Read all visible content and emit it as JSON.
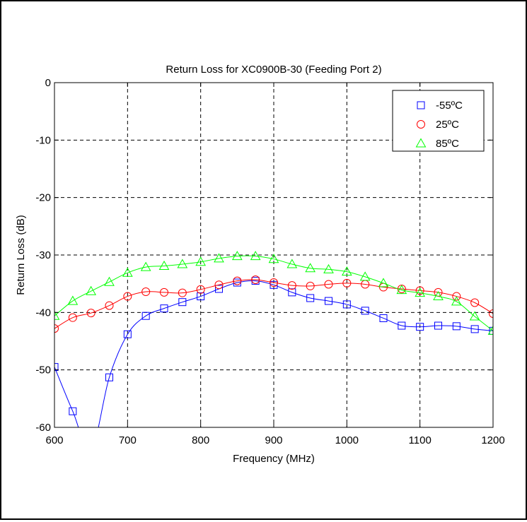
{
  "chart_data": {
    "type": "line",
    "title": "Return Loss for XC0900B-30 (Feeding Port 2)",
    "xlabel": "Frequency (MHz)",
    "ylabel": "Return Loss (dB)",
    "xlim": [
      600,
      1200
    ],
    "ylim": [
      -60,
      0
    ],
    "xticks": [
      600,
      700,
      800,
      900,
      1000,
      1100,
      1200
    ],
    "yticks": [
      0,
      -10,
      -20,
      -30,
      -40,
      -50,
      -60
    ],
    "xtick_labels": [
      "600",
      "700",
      "800",
      "900",
      "1000",
      "1100",
      "1200"
    ],
    "ytick_labels": [
      "0",
      "-10",
      "-20",
      "-30",
      "-40",
      "-50",
      "-60"
    ],
    "grid": true,
    "legend_position": "top-right",
    "series": [
      {
        "name": "-55ºC",
        "color": "#0000ff",
        "marker": "square",
        "x": [
          600,
          625,
          650,
          675,
          700,
          725,
          750,
          775,
          800,
          825,
          850,
          875,
          900,
          925,
          950,
          975,
          1000,
          1025,
          1050,
          1075,
          1100,
          1125,
          1150,
          1175,
          1200
        ],
        "y": [
          -49.5,
          -57.2,
          -64.0,
          -51.3,
          -43.8,
          -40.6,
          -39.3,
          -38.2,
          -37.2,
          -35.9,
          -34.8,
          -34.5,
          -35.2,
          -36.5,
          -37.5,
          -38.0,
          -38.6,
          -39.7,
          -41.0,
          -42.3,
          -42.5,
          -42.3,
          -42.4,
          -42.9,
          -43.2
        ]
      },
      {
        "name": "25ºC",
        "color": "#ff0000",
        "marker": "circle",
        "x": [
          600,
          625,
          650,
          675,
          700,
          725,
          750,
          775,
          800,
          825,
          850,
          875,
          900,
          925,
          950,
          975,
          1000,
          1025,
          1050,
          1075,
          1100,
          1125,
          1150,
          1175,
          1200
        ],
        "y": [
          -42.8,
          -40.9,
          -40.1,
          -38.8,
          -37.2,
          -36.4,
          -36.5,
          -36.6,
          -36.0,
          -35.2,
          -34.5,
          -34.3,
          -34.8,
          -35.3,
          -35.4,
          -35.1,
          -34.9,
          -35.1,
          -35.6,
          -35.9,
          -36.2,
          -36.5,
          -37.2,
          -38.3,
          -40.2
        ]
      },
      {
        "name": "85ºC",
        "color": "#00ff00",
        "marker": "triangle",
        "x": [
          600,
          625,
          650,
          675,
          700,
          725,
          750,
          775,
          800,
          825,
          850,
          875,
          900,
          925,
          950,
          975,
          1000,
          1025,
          1050,
          1075,
          1100,
          1125,
          1150,
          1175,
          1200
        ],
        "y": [
          -40.6,
          -38.0,
          -36.3,
          -34.7,
          -33.1,
          -32.1,
          -31.9,
          -31.6,
          -31.2,
          -30.6,
          -30.2,
          -30.2,
          -30.7,
          -31.6,
          -32.3,
          -32.5,
          -32.9,
          -33.8,
          -34.9,
          -36.1,
          -36.6,
          -37.2,
          -38.1,
          -40.7,
          -43.2
        ]
      }
    ]
  }
}
